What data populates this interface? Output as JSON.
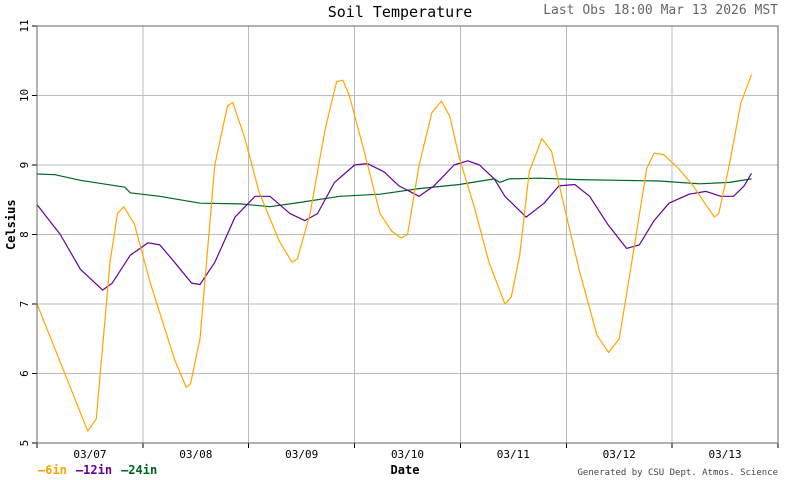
{
  "header": {
    "title": "Soil Temperature",
    "last_obs": "Last Obs 18:00 Mar 13 2026 MST"
  },
  "footer": {
    "xlabel": "Date",
    "credit": "Generated by CSU Dept. Atmos. Science"
  },
  "legend": [
    {
      "label": "6in",
      "color": "#ffa500"
    },
    {
      "label": "12in",
      "color": "#660099"
    },
    {
      "label": "24in",
      "color": "#006622"
    }
  ],
  "chart_data": {
    "type": "line",
    "title": "Soil Temperature",
    "subtitle": "Last Obs 18:00 Mar 13 2026 MST",
    "xlabel": "Date",
    "ylabel": "Celsius",
    "ylim": [
      5,
      11
    ],
    "yticks": [
      5,
      6,
      7,
      8,
      9,
      10,
      11
    ],
    "xtick_labels": [
      "03/07",
      "03/08",
      "03/09",
      "03/10",
      "03/11",
      "03/12",
      "03/13"
    ],
    "grid": true,
    "legend_position": "bottom-left",
    "x_unit": "days since plot start (gridlines at day boundaries 1..6)",
    "xlim": [
      0,
      7
    ],
    "series": [
      {
        "name": "6in",
        "color": "#ffa500",
        "x": [
          0,
          0.48,
          0.56,
          0.69,
          0.76,
          0.82,
          0.92,
          1.07,
          1.3,
          1.41,
          1.45,
          1.54,
          1.68,
          1.8,
          1.85,
          1.96,
          2.1,
          2.29,
          2.41,
          2.46,
          2.58,
          2.72,
          2.83,
          2.89,
          2.95,
          3.09,
          3.24,
          3.35,
          3.44,
          3.5,
          3.61,
          3.73,
          3.82,
          3.9,
          3.99,
          4.13,
          4.27,
          4.42,
          4.48,
          4.56,
          4.65,
          4.77,
          4.86,
          4.95,
          5.12,
          5.29,
          5.4,
          5.5,
          5.64,
          5.76,
          5.83,
          5.92,
          6.06,
          6.2,
          6.33,
          6.4,
          6.44,
          6.54,
          6.65,
          6.75
        ],
        "values": [
          7.0,
          5.17,
          5.35,
          7.6,
          8.3,
          8.4,
          8.15,
          7.3,
          6.2,
          5.8,
          5.85,
          6.5,
          9.0,
          9.85,
          9.9,
          9.4,
          8.6,
          7.9,
          7.6,
          7.65,
          8.3,
          9.5,
          10.2,
          10.22,
          10.0,
          9.2,
          8.3,
          8.05,
          7.95,
          8.0,
          9.0,
          9.75,
          9.92,
          9.7,
          9.1,
          8.4,
          7.6,
          7.0,
          7.1,
          7.7,
          8.9,
          9.38,
          9.2,
          8.6,
          7.5,
          6.55,
          6.3,
          6.5,
          7.8,
          8.95,
          9.17,
          9.15,
          8.95,
          8.7,
          8.4,
          8.25,
          8.3,
          9.0,
          9.9,
          10.3
        ]
      },
      {
        "name": "12in",
        "color": "#660099",
        "x": [
          0,
          0.22,
          0.41,
          0.62,
          0.71,
          0.88,
          1.05,
          1.16,
          1.3,
          1.46,
          1.54,
          1.68,
          1.87,
          2.06,
          2.2,
          2.39,
          2.53,
          2.65,
          2.81,
          3.0,
          3.12,
          3.28,
          3.42,
          3.61,
          3.75,
          3.94,
          4.07,
          4.18,
          4.32,
          4.42,
          4.62,
          4.79,
          4.93,
          5.08,
          5.22,
          5.39,
          5.57,
          5.69,
          5.83,
          5.97,
          6.16,
          6.32,
          6.46,
          6.58,
          6.68,
          6.75
        ],
        "values": [
          8.43,
          8.0,
          7.5,
          7.2,
          7.3,
          7.7,
          7.88,
          7.85,
          7.6,
          7.3,
          7.28,
          7.6,
          8.25,
          8.55,
          8.55,
          8.3,
          8.2,
          8.3,
          8.75,
          9.0,
          9.02,
          8.9,
          8.7,
          8.55,
          8.7,
          9.0,
          9.06,
          9.0,
          8.8,
          8.55,
          8.25,
          8.45,
          8.7,
          8.72,
          8.55,
          8.15,
          7.8,
          7.85,
          8.2,
          8.45,
          8.58,
          8.62,
          8.55,
          8.55,
          8.7,
          8.88
        ]
      },
      {
        "name": "24in",
        "color": "#006622",
        "x": [
          0,
          0.17,
          0.41,
          0.83,
          0.88,
          1.16,
          1.54,
          1.92,
          2.2,
          2.48,
          2.86,
          3.24,
          3.61,
          3.99,
          4.32,
          4.37,
          4.46,
          4.75,
          5.12,
          5.5,
          5.88,
          6.26,
          6.54,
          6.75
        ],
        "values": [
          8.87,
          8.86,
          8.78,
          8.68,
          8.6,
          8.55,
          8.45,
          8.44,
          8.4,
          8.46,
          8.55,
          8.58,
          8.66,
          8.72,
          8.8,
          8.75,
          8.8,
          8.81,
          8.79,
          8.78,
          8.77,
          8.73,
          8.75,
          8.8
        ]
      }
    ]
  }
}
